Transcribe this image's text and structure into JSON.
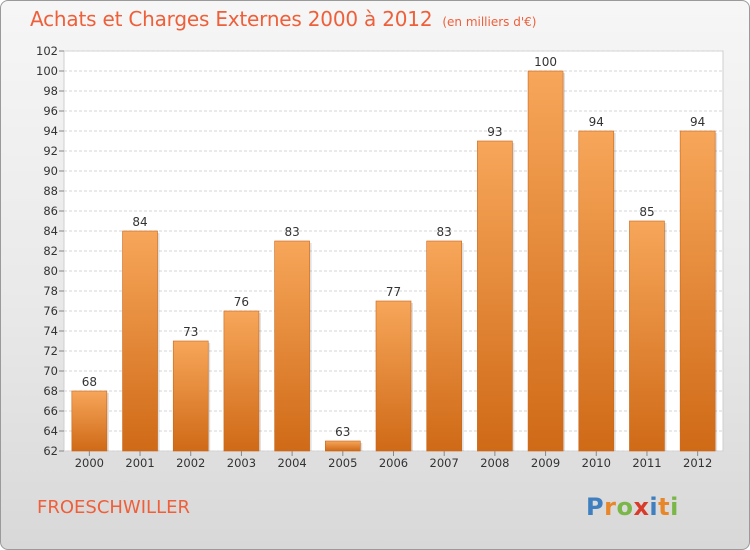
{
  "title": "Achats et Charges Externes 2000 à 2012",
  "subtitle": "(en milliers d'€)",
  "commune": "FROESCHWILLER",
  "logo": {
    "text": "Proxiti",
    "letters": [
      {
        "ch": "P",
        "color": "#3f7fc0"
      },
      {
        "ch": "r",
        "color": "#e8862a"
      },
      {
        "ch": "o",
        "color": "#7ab648"
      },
      {
        "ch": "x",
        "color": "#d93b2b"
      },
      {
        "ch": "i",
        "color": "#3f7fc0"
      },
      {
        "ch": "t",
        "color": "#e8862a"
      },
      {
        "ch": "i",
        "color": "#7ab648"
      }
    ]
  },
  "chart_data": {
    "type": "bar",
    "title": "Achats et Charges Externes 2000 à 2012",
    "subtitle": "(en milliers d'€)",
    "xlabel": "",
    "ylabel": "",
    "categories": [
      "2000",
      "2001",
      "2002",
      "2003",
      "2004",
      "2005",
      "2006",
      "2007",
      "2008",
      "2009",
      "2010",
      "2011",
      "2012"
    ],
    "values": [
      68,
      84,
      73,
      76,
      83,
      63,
      77,
      83,
      93,
      100,
      94,
      85,
      94
    ],
    "ylim": [
      62,
      102
    ],
    "yticks": [
      62,
      64,
      66,
      68,
      70,
      72,
      74,
      76,
      78,
      80,
      82,
      84,
      86,
      88,
      90,
      92,
      94,
      96,
      98,
      100,
      102
    ],
    "grid": true,
    "bar_color_top": "#f7a65a",
    "bar_color_bottom": "#cf6a17"
  }
}
